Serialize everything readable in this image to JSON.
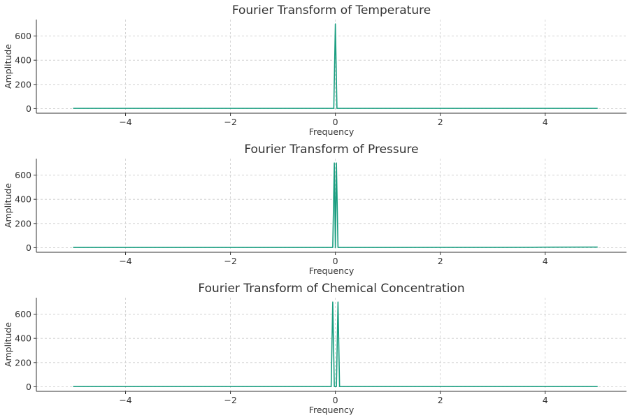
{
  "chart_data": [
    {
      "type": "line",
      "title": "Fourier Transform of Temperature",
      "xlabel": "Frequency",
      "ylabel": "Amplitude",
      "xlim": [
        -5,
        5
      ],
      "ylim": [
        0,
        700
      ],
      "xticks": [
        -4,
        -2,
        0,
        2,
        4
      ],
      "yticks": [
        0,
        200,
        400,
        600
      ],
      "grid": true,
      "color": "#1a9e80",
      "series": [
        {
          "x": [
            -5,
            -4,
            -3,
            -2,
            -1,
            -0.03,
            0,
            0.03,
            1,
            2,
            3,
            4,
            5
          ],
          "y": [
            2,
            2,
            2,
            2,
            2,
            2,
            700,
            2,
            2,
            2,
            2,
            2,
            2
          ]
        }
      ]
    },
    {
      "type": "line",
      "title": "Fourier Transform of Pressure",
      "xlabel": "Frequency",
      "ylabel": "Amplitude",
      "xlim": [
        -5,
        5
      ],
      "ylim": [
        0,
        700
      ],
      "xticks": [
        -4,
        -2,
        0,
        2,
        4
      ],
      "yticks": [
        0,
        200,
        400,
        600
      ],
      "grid": true,
      "color": "#1a9e80",
      "series": [
        {
          "x": [
            -5,
            -4,
            -3,
            -2,
            -1,
            -0.05,
            -0.02,
            0,
            0.02,
            0.05,
            1,
            2,
            3,
            4,
            5
          ],
          "y": [
            2,
            2,
            2,
            2,
            2,
            2,
            700,
            2,
            700,
            2,
            2,
            3,
            3,
            4,
            5
          ]
        }
      ]
    },
    {
      "type": "line",
      "title": "Fourier Transform of Chemical Concentration",
      "xlabel": "Frequency",
      "ylabel": "Amplitude",
      "xlim": [
        -5,
        5
      ],
      "ylim": [
        0,
        700
      ],
      "xticks": [
        -4,
        -2,
        0,
        2,
        4
      ],
      "yticks": [
        0,
        200,
        400,
        600
      ],
      "grid": true,
      "color": "#1a9e80",
      "series": [
        {
          "x": [
            -5,
            -4,
            -3,
            -2,
            -1,
            -0.08,
            -0.05,
            -0.02,
            0.02,
            0.05,
            0.08,
            1,
            2,
            3,
            4,
            5
          ],
          "y": [
            2,
            2,
            2,
            2,
            2,
            2,
            700,
            2,
            2,
            700,
            2,
            2,
            2,
            2,
            2,
            2
          ]
        }
      ]
    }
  ]
}
